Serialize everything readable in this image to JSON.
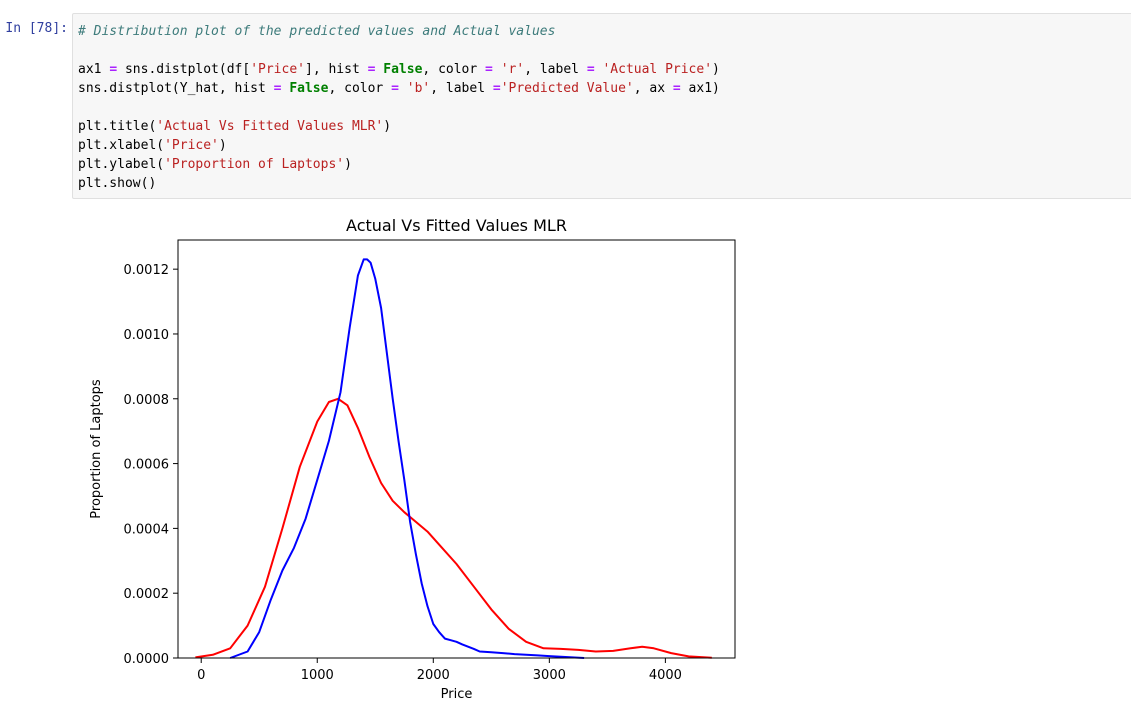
{
  "cell": {
    "prompt": "In [78]:",
    "code": [
      {
        "segments": [
          {
            "t": "c",
            "v": "# Distribution plot of the predicted values and Actual values"
          }
        ]
      },
      {
        "segments": []
      },
      {
        "segments": [
          {
            "t": "n",
            "v": "ax1 "
          },
          {
            "t": "o",
            "v": "="
          },
          {
            "t": "n",
            "v": " sns.distplot(df["
          },
          {
            "t": "s",
            "v": "'Price'"
          },
          {
            "t": "n",
            "v": "], hist "
          },
          {
            "t": "o",
            "v": "="
          },
          {
            "t": "n",
            "v": " "
          },
          {
            "t": "k",
            "v": "False"
          },
          {
            "t": "n",
            "v": ", color "
          },
          {
            "t": "o",
            "v": "="
          },
          {
            "t": "n",
            "v": " "
          },
          {
            "t": "s",
            "v": "'r'"
          },
          {
            "t": "n",
            "v": ", label "
          },
          {
            "t": "o",
            "v": "="
          },
          {
            "t": "n",
            "v": " "
          },
          {
            "t": "s",
            "v": "'Actual Price'"
          },
          {
            "t": "n",
            "v": ")"
          }
        ]
      },
      {
        "segments": [
          {
            "t": "n",
            "v": "sns.distplot(Y_hat, hist "
          },
          {
            "t": "o",
            "v": "="
          },
          {
            "t": "n",
            "v": " "
          },
          {
            "t": "k",
            "v": "False"
          },
          {
            "t": "n",
            "v": ", color "
          },
          {
            "t": "o",
            "v": "="
          },
          {
            "t": "n",
            "v": " "
          },
          {
            "t": "s",
            "v": "'b'"
          },
          {
            "t": "n",
            "v": ", label "
          },
          {
            "t": "o",
            "v": "="
          },
          {
            "t": "s",
            "v": "'Predicted Value'"
          },
          {
            "t": "n",
            "v": ", ax "
          },
          {
            "t": "o",
            "v": "="
          },
          {
            "t": "n",
            "v": " ax1)"
          }
        ]
      },
      {
        "segments": []
      },
      {
        "segments": [
          {
            "t": "n",
            "v": "plt.title("
          },
          {
            "t": "s",
            "v": "'Actual Vs Fitted Values MLR'"
          },
          {
            "t": "n",
            "v": ")"
          }
        ]
      },
      {
        "segments": [
          {
            "t": "n",
            "v": "plt.xlabel("
          },
          {
            "t": "s",
            "v": "'Price'"
          },
          {
            "t": "n",
            "v": ")"
          }
        ]
      },
      {
        "segments": [
          {
            "t": "n",
            "v": "plt.ylabel("
          },
          {
            "t": "s",
            "v": "'Proportion of Laptops'"
          },
          {
            "t": "n",
            "v": ")"
          }
        ]
      },
      {
        "segments": [
          {
            "t": "n",
            "v": "plt.show()"
          }
        ]
      }
    ]
  },
  "chart_data": {
    "type": "line",
    "title": "Actual Vs Fitted Values MLR",
    "xlabel": "Price",
    "ylabel": "Proportion of Laptops",
    "xlim": [
      -200,
      4600
    ],
    "ylim": [
      0,
      0.00129
    ],
    "xticks": [
      0,
      1000,
      2000,
      3000,
      4000
    ],
    "xtick_labels": [
      "0",
      "1000",
      "2000",
      "3000",
      "4000"
    ],
    "yticks": [
      0,
      0.0002,
      0.0004,
      0.0006,
      0.0008,
      0.001,
      0.0012
    ],
    "ytick_labels": [
      "0.0000",
      "0.0002",
      "0.0004",
      "0.0006",
      "0.0008",
      "0.0010",
      "0.0012"
    ],
    "grid": false,
    "legend": "none",
    "series": [
      {
        "color": "#ff0000",
        "x": [
          -50,
          100,
          250,
          400,
          550,
          700,
          850,
          1000,
          1100,
          1180,
          1260,
          1350,
          1450,
          1550,
          1650,
          1750,
          1850,
          1950,
          2050,
          2200,
          2350,
          2500,
          2650,
          2800,
          2950,
          3100,
          3250,
          3400,
          3550,
          3700,
          3800,
          3900,
          4050,
          4200,
          4400
        ],
        "y": [
          2e-06,
          1e-05,
          3e-05,
          0.0001,
          0.00022,
          0.0004,
          0.00059,
          0.00073,
          0.00079,
          0.0008,
          0.00078,
          0.00071,
          0.00062,
          0.00054,
          0.000485,
          0.00045,
          0.00042,
          0.00039,
          0.00035,
          0.00029,
          0.00022,
          0.00015,
          9e-05,
          5e-05,
          3e-05,
          2.8e-05,
          2.5e-05,
          2e-05,
          2.2e-05,
          3e-05,
          3.5e-05,
          3e-05,
          1.5e-05,
          5e-06,
          1e-06
        ]
      },
      {
        "color": "#0000ff",
        "x": [
          250,
          400,
          500,
          600,
          700,
          800,
          900,
          1000,
          1100,
          1200,
          1280,
          1350,
          1400,
          1430,
          1460,
          1500,
          1550,
          1600,
          1650,
          1700,
          1750,
          1800,
          1850,
          1900,
          1950,
          2000,
          2050,
          2100,
          2150,
          2200,
          2250,
          2300,
          2350,
          2400,
          2500,
          2600,
          2700,
          2800,
          2900,
          3000,
          3100,
          3300
        ],
        "y": [
          0.0,
          2e-05,
          8e-05,
          0.00018,
          0.00027,
          0.00034,
          0.00043,
          0.00055,
          0.00067,
          0.00082,
          0.00102,
          0.00118,
          0.00123,
          0.00123,
          0.00122,
          0.00117,
          0.00108,
          0.00094,
          0.0008,
          0.00067,
          0.00055,
          0.00042,
          0.00032,
          0.00023,
          0.00016,
          0.000105,
          8e-05,
          6e-05,
          5.5e-05,
          5e-05,
          4.2e-05,
          3.5e-05,
          2.8e-05,
          2e-05,
          1.8e-05,
          1.5e-05,
          1.2e-05,
          1e-05,
          8e-06,
          6e-06,
          4e-06,
          0.0
        ]
      }
    ]
  }
}
